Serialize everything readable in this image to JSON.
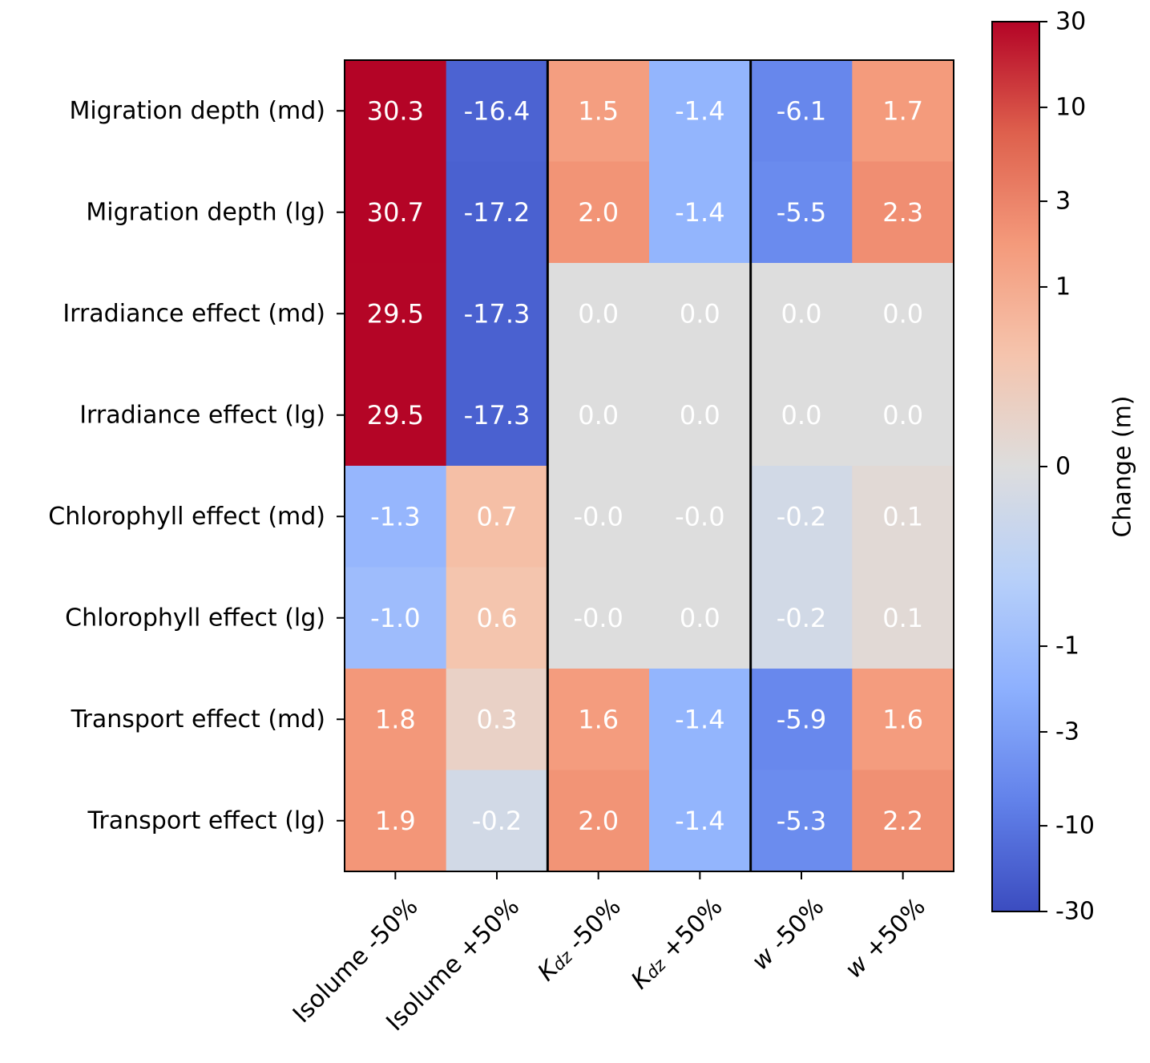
{
  "chart_data": {
    "type": "heatmap",
    "title": "",
    "rows": [
      "Migration depth (md)",
      "Migration depth (lg)",
      "Irradiance effect (md)",
      "Irradiance effect (lg)",
      "Chlorophyll effect (md)",
      "Chlorophyll effect (lg)",
      "Transport effect (md)",
      "Transport effect (lg)"
    ],
    "columns": [
      {
        "prefix": "Isolume",
        "italic": "",
        "sub": "",
        "suffix": " -50%"
      },
      {
        "prefix": "Isolume",
        "italic": "",
        "sub": "",
        "suffix": " +50%"
      },
      {
        "prefix": "",
        "italic": "K",
        "sub": "dz",
        "suffix": " -50%"
      },
      {
        "prefix": "",
        "italic": "K",
        "sub": "dz",
        "suffix": " +50%"
      },
      {
        "prefix": "",
        "italic": "w",
        "sub": "",
        "suffix": " -50%"
      },
      {
        "prefix": "",
        "italic": "w",
        "sub": "",
        "suffix": " +50%"
      }
    ],
    "values": [
      [
        30.3,
        -16.4,
        1.5,
        -1.4,
        -6.1,
        1.7
      ],
      [
        30.7,
        -17.2,
        2.0,
        -1.4,
        -5.5,
        2.3
      ],
      [
        29.5,
        -17.3,
        0.0,
        0.0,
        0.0,
        0.0
      ],
      [
        29.5,
        -17.3,
        0.0,
        0.0,
        0.0,
        0.0
      ],
      [
        -1.3,
        0.7,
        -0.0,
        -0.0,
        -0.2,
        0.1
      ],
      [
        -1.0,
        0.6,
        -0.0,
        0.0,
        -0.2,
        0.1
      ],
      [
        1.8,
        0.3,
        1.6,
        -1.4,
        -5.9,
        1.6
      ],
      [
        1.9,
        -0.2,
        2.0,
        -1.4,
        -5.3,
        2.2
      ]
    ],
    "cell_labels": [
      [
        "30.3",
        "-16.4",
        "1.5",
        "-1.4",
        "-6.1",
        "1.7"
      ],
      [
        "30.7",
        "-17.2",
        "2.0",
        "-1.4",
        "-5.5",
        "2.3"
      ],
      [
        "29.5",
        "-17.3",
        "0.0",
        "0.0",
        "0.0",
        "0.0"
      ],
      [
        "29.5",
        "-17.3",
        "0.0",
        "0.0",
        "0.0",
        "0.0"
      ],
      [
        "-1.3",
        "0.7",
        "-0.0",
        "-0.0",
        "-0.2",
        "0.1"
      ],
      [
        "-1.0",
        "0.6",
        "-0.0",
        "0.0",
        "-0.2",
        "0.1"
      ],
      [
        "1.8",
        "0.3",
        "1.6",
        "-1.4",
        "-5.9",
        "1.6"
      ],
      [
        "1.9",
        "-0.2",
        "2.0",
        "-1.4",
        "-5.3",
        "2.2"
      ]
    ],
    "group_separators_after_columns": [
      2,
      4
    ],
    "colormap": "coolwarm",
    "colorbar": {
      "label": "Change (m)",
      "scale": "symlog",
      "range": [
        -30,
        30
      ],
      "ticks": [
        -30,
        -10,
        -3,
        -1,
        0,
        1,
        3,
        10,
        30
      ],
      "tick_labels": [
        "-30",
        "-10",
        "-3",
        "-1",
        "0",
        "1",
        "3",
        "10",
        "30"
      ]
    },
    "grid": false
  }
}
